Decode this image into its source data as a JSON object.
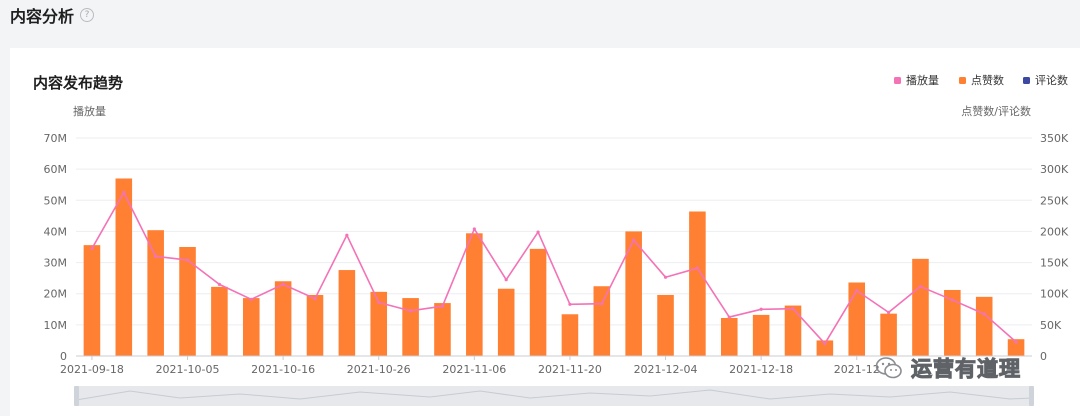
{
  "page": {
    "title": "内容分析",
    "help_icon": "question-circle-icon"
  },
  "chart_card": {
    "title": "内容发布趋势",
    "left_axis_label": "播放量",
    "right_axis_label": "点赞数/评论数",
    "legend": [
      {
        "label": "播放量",
        "color": "#f472b6"
      },
      {
        "label": "点赞数",
        "color": "#ff8033"
      },
      {
        "label": "评论数",
        "color": "#3b4aa0"
      }
    ]
  },
  "watermark": {
    "text": "运营有道理",
    "icon": "wechat-icon"
  },
  "chart_data": {
    "type": "bar",
    "colors": {
      "plays": "#f472b6",
      "likes": "#ff8033",
      "comments": "#3b4aa0"
    },
    "x_tick_labels": [
      "2021-09-18",
      "2021-10-05",
      "2021-10-16",
      "2021-10-26",
      "2021-11-06",
      "2021-11-20",
      "2021-12-04",
      "2021-12-18",
      "2021-12"
    ],
    "y_left": {
      "ticks": [
        "0",
        "10M",
        "20M",
        "30M",
        "40M",
        "50M",
        "60M",
        "70M"
      ],
      "range": [
        0,
        70000000
      ]
    },
    "y_right": {
      "ticks": [
        "0",
        "50K",
        "100K",
        "150K",
        "200K",
        "250K",
        "300K",
        "350K"
      ],
      "range": [
        0,
        350000
      ]
    },
    "grid": true,
    "legend_position": "top-right",
    "series": [
      {
        "name": "点赞数",
        "type": "bar",
        "axis": "right",
        "values": [
          178000,
          285000,
          202000,
          175000,
          111000,
          93000,
          120000,
          98000,
          138000,
          103000,
          93000,
          85000,
          197000,
          108000,
          172000,
          67000,
          112000,
          200000,
          98000,
          232000,
          61000,
          66000,
          81000,
          25000,
          118000,
          68000,
          156000,
          106000,
          95000,
          27000
        ]
      },
      {
        "name": "播放量",
        "type": "line",
        "axis": "left",
        "values": [
          34500000,
          52500000,
          32000000,
          30800000,
          23000000,
          18200000,
          23000000,
          18400000,
          38800000,
          17200000,
          14500000,
          16000000,
          40800000,
          24500000,
          39800000,
          16600000,
          16800000,
          37200000,
          25300000,
          28200000,
          12500000,
          15000000,
          15200000,
          4000000,
          21000000,
          14000000,
          22300000,
          18000000,
          13500000,
          4500000
        ]
      }
    ]
  }
}
